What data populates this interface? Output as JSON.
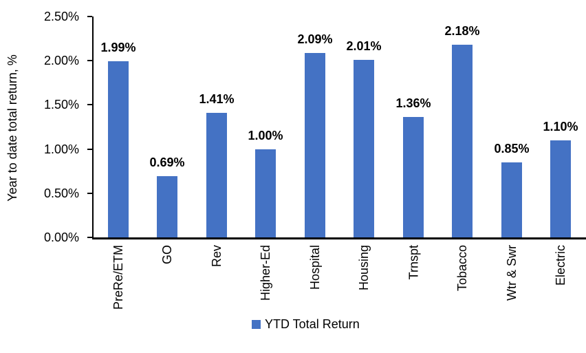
{
  "chart_data": {
    "type": "bar",
    "categories": [
      "PreRe/ETM",
      "GO",
      "Rev",
      "Higher-Ed",
      "Hospital",
      "Housing",
      "Trnspt",
      "Tobacco",
      "Wtr & Swr",
      "Electric"
    ],
    "values": [
      1.99,
      0.69,
      1.41,
      1.0,
      2.09,
      2.01,
      1.36,
      2.18,
      0.85,
      1.1
    ],
    "value_labels": [
      "1.99%",
      "0.69%",
      "1.41%",
      "1.00%",
      "2.09%",
      "2.01%",
      "1.36%",
      "2.18%",
      "0.85%",
      "1.10%"
    ],
    "title": "",
    "xlabel": "",
    "ylabel": "Year to date total return, %",
    "yticks": [
      "0.00%",
      "0.50%",
      "1.00%",
      "1.50%",
      "2.00%",
      "2.50%"
    ],
    "ylim": [
      0,
      2.5
    ],
    "grid": false,
    "legend_position": "bottom",
    "legend": [
      {
        "label": "YTD Total Return",
        "color": "#4472C4"
      }
    ],
    "bar_color": "#4472C4",
    "axis_color": "#000000",
    "text_color": "#000000",
    "background_color": "#FFFFFF"
  }
}
